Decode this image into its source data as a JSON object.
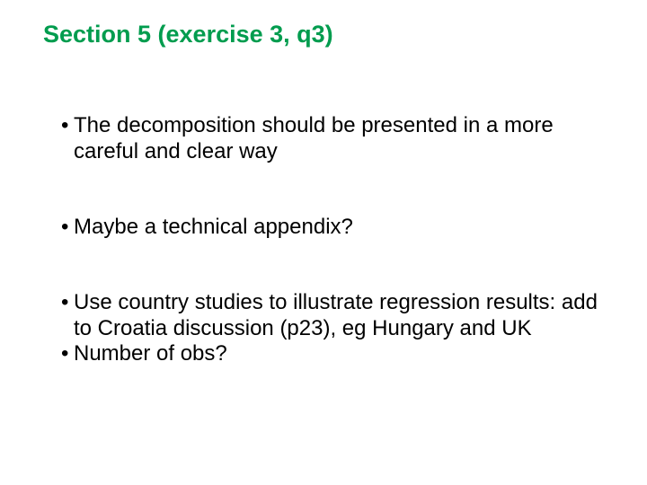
{
  "title_color": "#009c4e",
  "text_color": "#000000",
  "background_color": "#ffffff",
  "title_fontsize": 27,
  "body_fontsize": 24,
  "heading": "Section 5 (exercise 3, q3)",
  "bullet_mark": "•",
  "groups": [
    {
      "items": [
        "The decomposition should be presented in a more careful and clear way"
      ]
    },
    {
      "items": [
        "Maybe a technical appendix?"
      ]
    },
    {
      "items": [
        "Use country studies to illustrate regression results: add to Croatia discussion (p23), eg Hungary and UK",
        "Number of obs?"
      ]
    }
  ]
}
